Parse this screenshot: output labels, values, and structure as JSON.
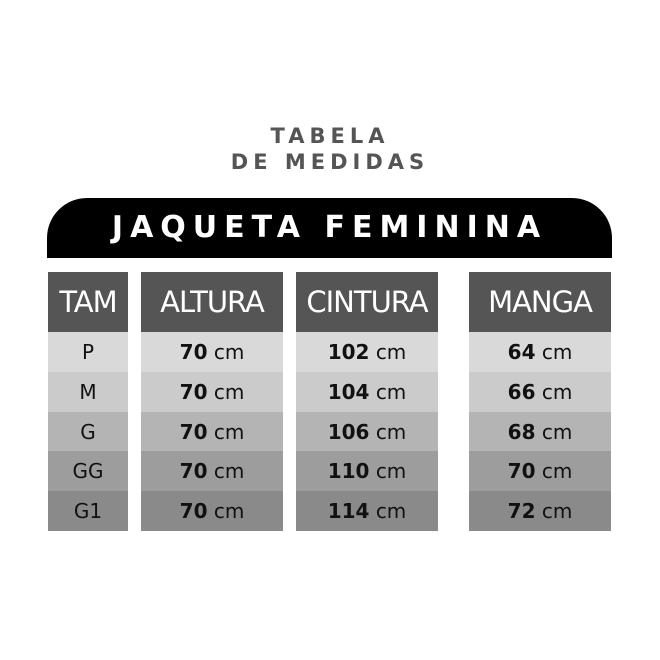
{
  "title_line1": "TABELA",
  "title_line2": "DE MEDIDAS",
  "product": "JAQUETA FEMININA",
  "unit": "cm",
  "columns": [
    {
      "header": "TAM",
      "values": [
        "P",
        "M",
        "G",
        "GG",
        "G1"
      ]
    },
    {
      "header": "ALTURA",
      "values": [
        "70",
        "70",
        "70",
        "70",
        "70"
      ]
    },
    {
      "header": "CINTURA",
      "values": [
        "102",
        "104",
        "106",
        "110",
        "114"
      ]
    },
    {
      "header": "MANGA",
      "values": [
        "64",
        "66",
        "68",
        "70",
        "72"
      ]
    }
  ]
}
